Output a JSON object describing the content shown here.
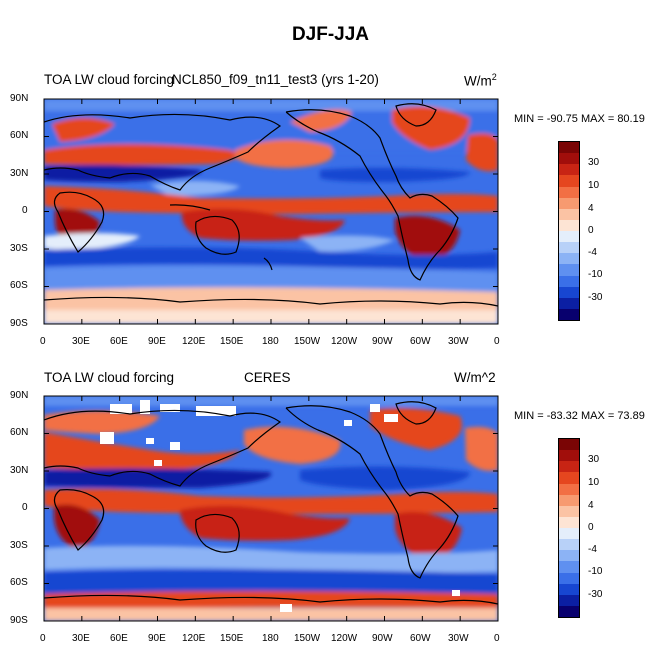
{
  "title": "DJF-JJA",
  "x_ticks": [
    "0",
    "30E",
    "60E",
    "90E",
    "120E",
    "150E",
    "180",
    "150W",
    "120W",
    "90W",
    "60W",
    "30W",
    "0"
  ],
  "y_ticks": [
    "90N",
    "60N",
    "30N",
    "0",
    "30S",
    "60S",
    "90S"
  ],
  "panels": [
    {
      "left_label": "TOA LW cloud forcing",
      "center_label": "NCL850_f09_tn11_test3 (yrs 1-20)",
      "units_base": "W/m",
      "units_sup": "2",
      "stats": "MIN = -90.75  MAX =  80.19"
    },
    {
      "left_label": "TOA LW cloud forcing",
      "center_label": "CERES",
      "units_base": "W/m^2",
      "units_sup": "",
      "stats": "MIN = -83.32  MAX =  73.89"
    }
  ],
  "colorbar": {
    "colors": [
      "#08006e",
      "#0b1fa3",
      "#1746d1",
      "#3a6fe8",
      "#5f90f0",
      "#8cb3f5",
      "#b8d1f8",
      "#e4eefb",
      "#fde4d4",
      "#fbc3a4",
      "#f79a70",
      "#f26f44",
      "#e5461f",
      "#c82414",
      "#a10e0b",
      "#7a0505"
    ],
    "labels": [
      "-30",
      "-10",
      "-4",
      "0",
      "4",
      "10",
      "30"
    ]
  },
  "chart_data": {
    "type": "heatmap",
    "title": "DJF-JJA",
    "variable": "TOA LW cloud forcing",
    "units": "W/m^2",
    "x_axis": "longitude",
    "y_axis": "latitude",
    "panels": [
      {
        "name": "NCL850_f09_tn11_test3 (yrs 1-20)",
        "min": -90.75,
        "max": 80.19
      },
      {
        "name": "CERES",
        "min": -83.32,
        "max": 73.89
      }
    ],
    "colorbar_levels": [
      -30,
      -10,
      -4,
      0,
      4,
      10,
      30
    ]
  }
}
